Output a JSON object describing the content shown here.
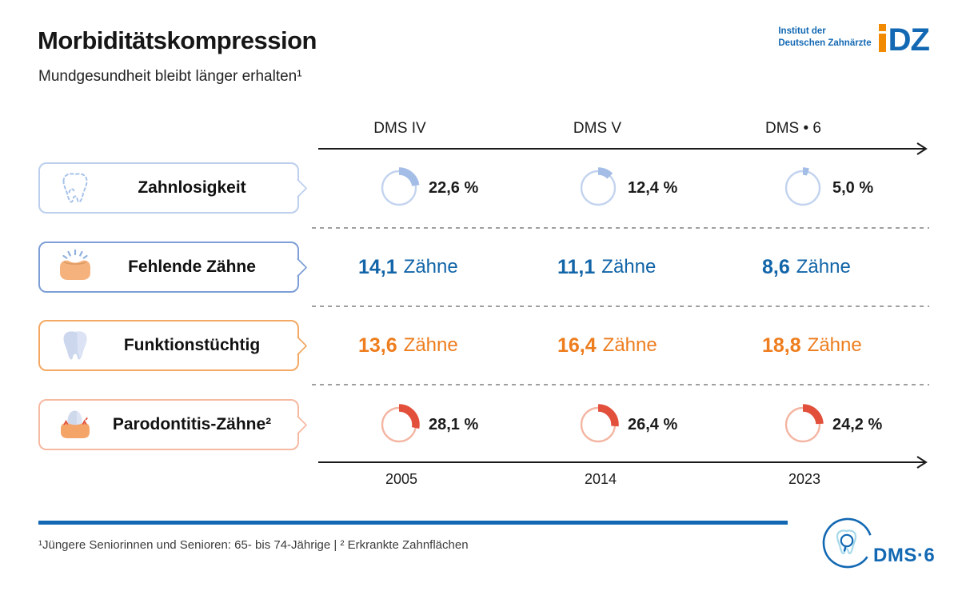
{
  "header": {
    "title": "Morbiditätskompression",
    "subtitle": "Mundgesundheit bleibt länger erhalten¹"
  },
  "idz_logo": {
    "line1": "Institut der",
    "line2": "Deutschen Zahnärzte",
    "acronym_rest": "DZ"
  },
  "colors": {
    "brand_blue": "#1268b3",
    "accent_orange": "#f28a00",
    "value_blue": "#1265a8",
    "value_orange": "#ee7d1e",
    "donut_blue_arc": "#a3bde6",
    "donut_blue_ring": "#c3d3ef",
    "donut_red_arc": "#e2503c",
    "donut_red_ring": "#f4b5a2"
  },
  "chart_data": {
    "type": "table",
    "title": "Morbiditätskompression",
    "subtitle": "Mundgesundheit bleibt länger erhalten¹",
    "columns": [
      {
        "study": "DMS IV",
        "year": "2005"
      },
      {
        "study": "DMS V",
        "year": "2014"
      },
      {
        "study": "DMS • 6",
        "year": "2023"
      }
    ],
    "rows": [
      {
        "label": "Zahnlosigkeit",
        "kind": "donut",
        "unit": "%",
        "values": [
          22.6,
          12.4,
          5.0
        ],
        "display": [
          "22,6 %",
          "12,4 %",
          "5,0 %"
        ],
        "arc_color": "#a3bde6",
        "ring_color": "#c3d3ef",
        "icon": "tooth-outline-dashed"
      },
      {
        "label": "Fehlende Zähne",
        "kind": "number",
        "unit": "Zähne",
        "values": [
          14.1,
          11.1,
          8.6
        ],
        "display": [
          "14,1",
          "11,1",
          "8,6"
        ],
        "value_color": "#1265a8",
        "icon": "missing-tooth-gum"
      },
      {
        "label": "Funktionstüchtig",
        "kind": "number",
        "unit": "Zähne",
        "values": [
          13.6,
          16.4,
          18.8
        ],
        "display": [
          "13,6",
          "16,4",
          "18,8"
        ],
        "value_color": "#ee7d1e",
        "icon": "healthy-tooth"
      },
      {
        "label": "Parodontitis-Zähne²",
        "kind": "donut",
        "unit": "%",
        "values": [
          28.1,
          26.4,
          24.2
        ],
        "display": [
          "28,1 %",
          "26,4 %",
          "24,2 %"
        ],
        "arc_color": "#e2503c",
        "ring_color": "#f4b5a2",
        "icon": "inflamed-gum-tooth"
      }
    ]
  },
  "footer": {
    "footnote": "¹Jüngere Seniorinnen und Senioren: 65- bis 74-Jährige | ² Erkrankte Zahnflächen",
    "dms_logo_text": "DMS·6"
  }
}
